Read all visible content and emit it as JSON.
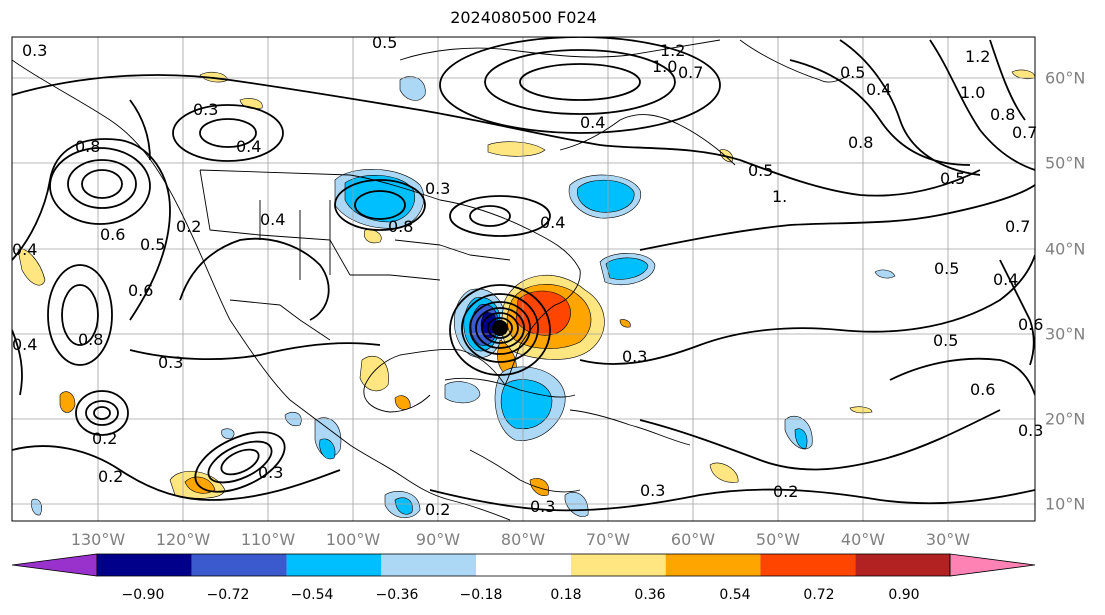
{
  "title": "2024080500 F024",
  "lon_labels": [
    "130°W",
    "120°W",
    "110°W",
    "100°W",
    "90°W",
    "80°W",
    "70°W",
    "60°W",
    "50°W",
    "40°W",
    "30°W"
  ],
  "lat_labels": [
    "60°N",
    "50°N",
    "40°N",
    "30°N",
    "20°N",
    "10°N"
  ],
  "colorbar": {
    "ticks": [
      "−0.90",
      "−0.72",
      "−0.54",
      "−0.36",
      "−0.18",
      "0.18",
      "0.36",
      "0.54",
      "0.72",
      "0.90"
    ],
    "colors": [
      "#9932cc",
      "#00008b",
      "#3a5acd",
      "#00bfff",
      "#add8f5",
      "#ffffff",
      "#ffe680",
      "#ffa500",
      "#ff4500",
      "#b22222",
      "#ff82b4"
    ]
  },
  "contour_labels": [
    {
      "text": "0.3",
      "key": "a1"
    },
    {
      "text": "0.5",
      "key": "a2"
    },
    {
      "text": "1.2",
      "key": "a3"
    },
    {
      "text": "1.0",
      "key": "a4"
    },
    {
      "text": "0.7",
      "key": "a5"
    },
    {
      "text": "0.3",
      "key": "a6"
    },
    {
      "text": "0.4",
      "key": "a7"
    },
    {
      "text": "0.8",
      "key": "a8"
    },
    {
      "text": "0.6",
      "key": "a9"
    },
    {
      "text": "0.5",
      "key": "a10"
    },
    {
      "text": "0.4",
      "key": "a11"
    },
    {
      "text": "0.8",
      "key": "a12"
    },
    {
      "text": "0.3",
      "key": "a13"
    },
    {
      "text": "0.2",
      "key": "a14"
    },
    {
      "text": "0.4",
      "key": "a15"
    },
    {
      "text": "0.4",
      "key": "a16"
    },
    {
      "text": "0.3",
      "key": "a17"
    },
    {
      "text": "0.4",
      "key": "a18"
    },
    {
      "text": "0.5",
      "key": "a19"
    },
    {
      "text": "0.4",
      "key": "a20"
    },
    {
      "text": "0.5",
      "key": "a21"
    },
    {
      "text": "1.0",
      "key": "a22"
    },
    {
      "text": "1.2",
      "key": "a23"
    },
    {
      "text": "0.8",
      "key": "a24"
    },
    {
      "text": "0.7",
      "key": "a25"
    },
    {
      "text": "0.5",
      "key": "a26"
    },
    {
      "text": "0.7",
      "key": "a27"
    },
    {
      "text": "0.5",
      "key": "a28"
    },
    {
      "text": "0.4",
      "key": "a29"
    },
    {
      "text": "0.6",
      "key": "a30"
    },
    {
      "text": "0.5",
      "key": "a31"
    },
    {
      "text": "0.6",
      "key": "a32"
    },
    {
      "text": "0.3",
      "key": "a33"
    },
    {
      "text": "0.2",
      "key": "a34"
    },
    {
      "text": "0.3",
      "key": "a35"
    },
    {
      "text": "0.2",
      "key": "a36"
    },
    {
      "text": "0.2",
      "key": "a37"
    },
    {
      "text": "0.3",
      "key": "a38"
    },
    {
      "text": "0.2",
      "key": "a39"
    },
    {
      "text": "0.4",
      "key": "a40"
    },
    {
      "text": "0.3",
      "key": "a41"
    },
    {
      "text": "0.3",
      "key": "a42"
    },
    {
      "text": "0.8",
      "key": "a43"
    },
    {
      "text": "0.6",
      "key": "a44"
    },
    {
      "text": "0.8",
      "key": "a45"
    },
    {
      "text": "1.",
      "key": "a46"
    }
  ]
}
